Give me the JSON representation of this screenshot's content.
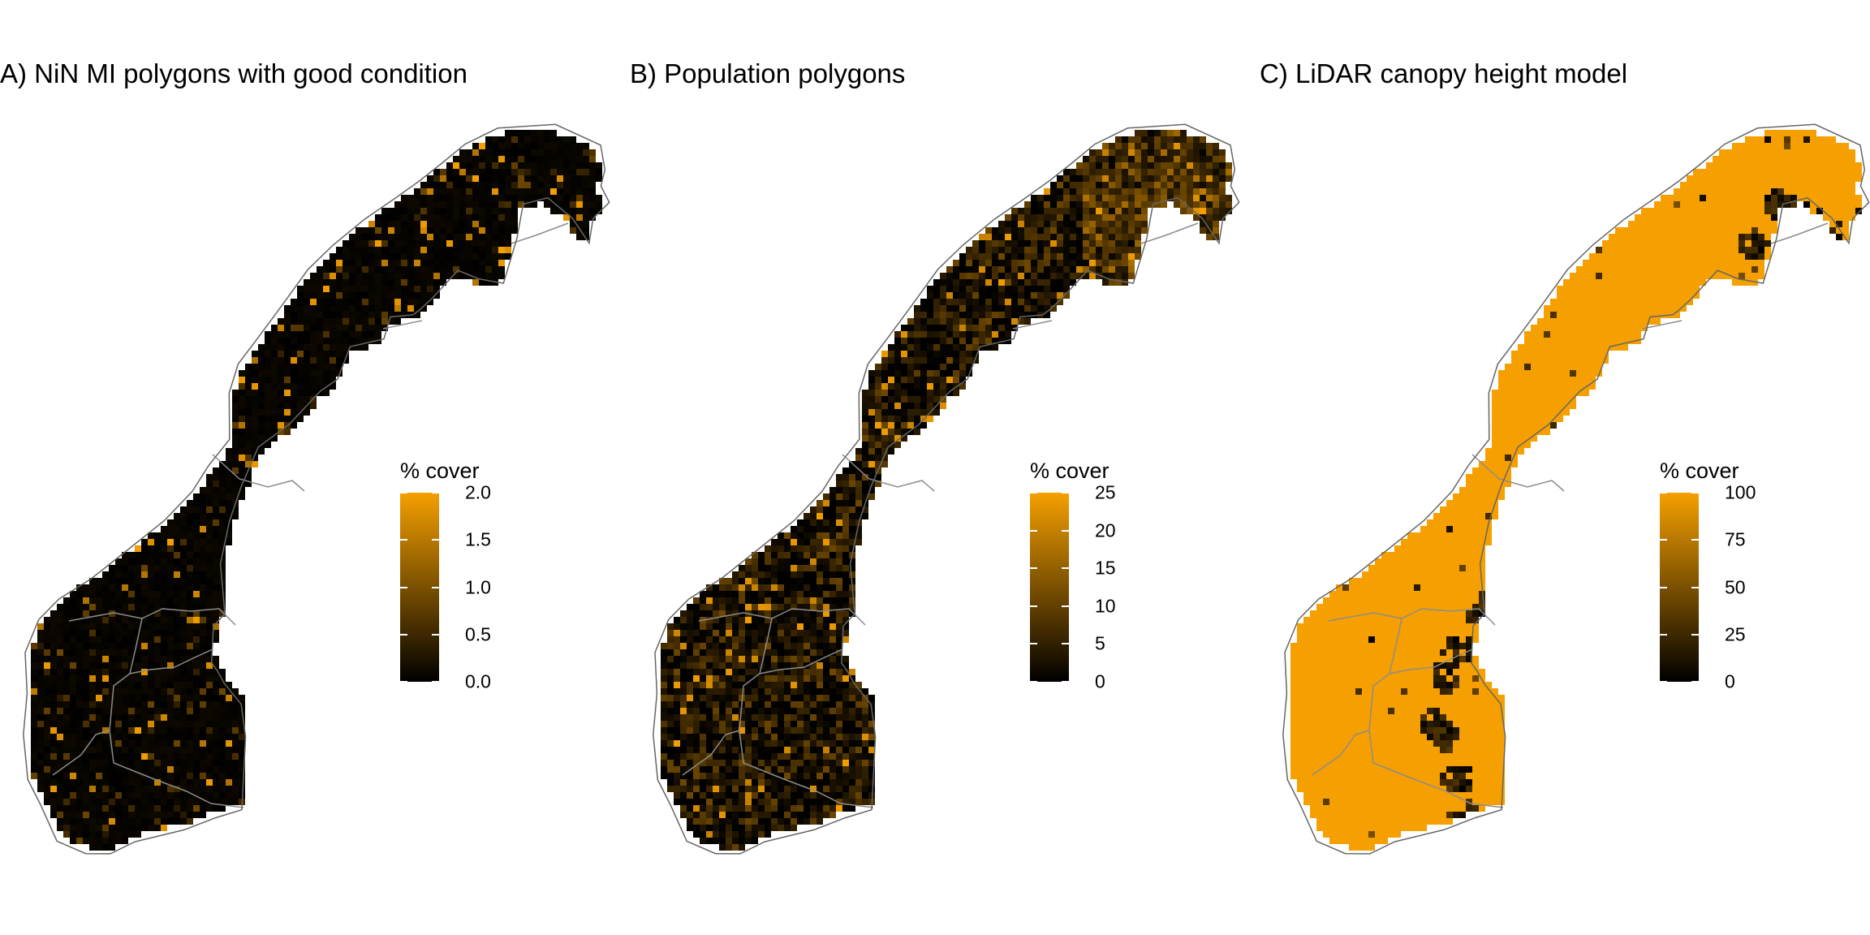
{
  "colors": {
    "low": "#000000",
    "high": "#f5a000",
    "outline": "#666666",
    "inner_border": "#8c8c8c"
  },
  "panels": [
    {
      "title": "A) NiN MI polygons with good condition",
      "legend": {
        "title": "% cover",
        "ticks": [
          "2.0",
          "1.5",
          "1.0",
          "0.5",
          "0.0"
        ]
      },
      "fill_profile": "sparse"
    },
    {
      "title": "B) Population polygons",
      "legend": {
        "title": "% cover",
        "ticks": [
          "25",
          "20",
          "15",
          "10",
          "5",
          "0"
        ]
      },
      "fill_profile": "moderate"
    },
    {
      "title": "C) LiDAR canopy height model",
      "legend": {
        "title": "% cover",
        "ticks": [
          "100",
          "75",
          "50",
          "25",
          "0"
        ]
      },
      "fill_profile": "full"
    }
  ]
}
